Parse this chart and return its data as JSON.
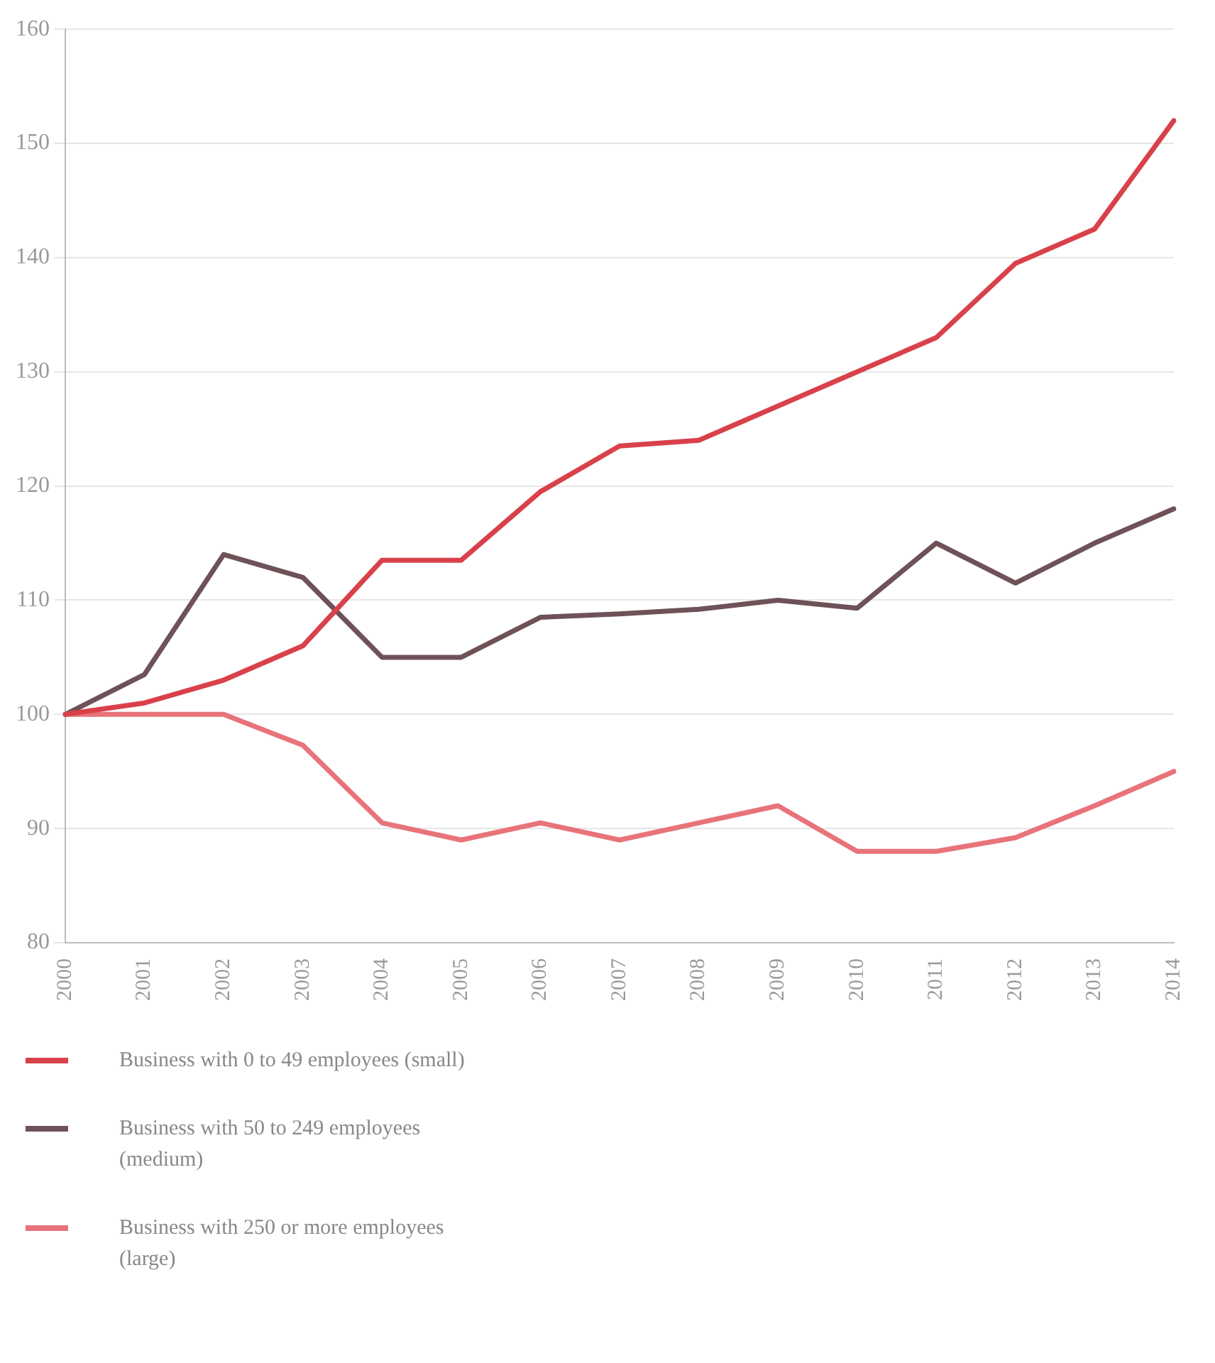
{
  "chart_data": {
    "type": "line",
    "categories": [
      "2000",
      "2001",
      "2002",
      "2003",
      "2004",
      "2005",
      "2006",
      "2007",
      "2008",
      "2009",
      "2010",
      "2011",
      "2012",
      "2013",
      "2014"
    ],
    "series": [
      {
        "name": "Business with 0 to 49 employees (small)",
        "color": "#d9414a",
        "values": [
          100,
          101,
          103,
          106,
          113.5,
          113.5,
          119.5,
          123.5,
          124,
          127,
          130,
          133,
          139.5,
          142.5,
          152
        ]
      },
      {
        "name": "Business with 50 to 249 employees (medium)",
        "color": "#6e5258",
        "values": [
          100,
          103.5,
          114,
          112,
          105,
          105,
          108.5,
          108.8,
          109.2,
          110,
          109.3,
          115,
          111.5,
          115,
          118
        ]
      },
      {
        "name": "Business with 250 or more employees (large)",
        "color": "#e8737a",
        "values": [
          100,
          100,
          100,
          97.3,
          90.5,
          89,
          90.5,
          89,
          90.5,
          92,
          88,
          88,
          89.2,
          92,
          95
        ]
      }
    ],
    "ylim": [
      80,
      160
    ],
    "yticks": [
      80,
      90,
      100,
      110,
      120,
      130,
      140,
      150,
      160
    ],
    "grid": "y",
    "legend": "bottom",
    "marker": "none",
    "line_style": "solid"
  }
}
